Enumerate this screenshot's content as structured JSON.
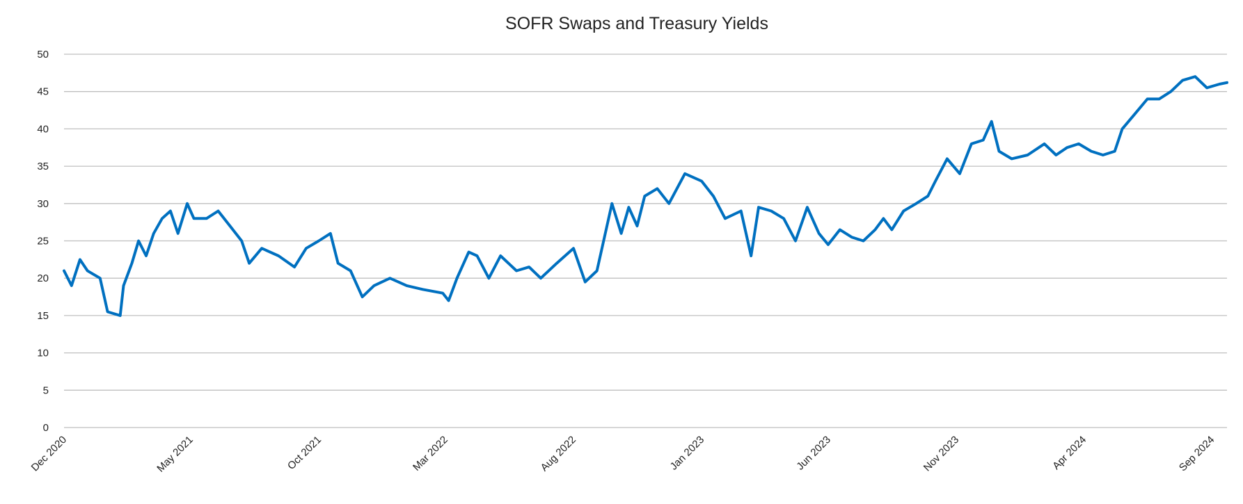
{
  "chart_data": {
    "type": "line",
    "title": "SOFR Swaps and Treasury Yields",
    "xlabel": "",
    "ylabel": "",
    "ylim": [
      0,
      50
    ],
    "yticks": [
      0,
      5,
      10,
      15,
      20,
      25,
      30,
      35,
      40,
      45,
      50
    ],
    "xlim": [
      "2020-12-01",
      "2024-09-19"
    ],
    "xticks": [
      {
        "date": "2020-12-01",
        "label": "Dec 2020"
      },
      {
        "date": "2021-05-01",
        "label": "May 2021"
      },
      {
        "date": "2021-10-01",
        "label": "Oct 2021"
      },
      {
        "date": "2022-03-01",
        "label": "Mar 2022"
      },
      {
        "date": "2022-08-01",
        "label": "Aug 2022"
      },
      {
        "date": "2023-01-01",
        "label": "Jan 2023"
      },
      {
        "date": "2023-06-01",
        "label": "Jun 2023"
      },
      {
        "date": "2023-11-01",
        "label": "Nov 2023"
      },
      {
        "date": "2024-04-01",
        "label": "Apr 2024"
      },
      {
        "date": "2024-09-01",
        "label": "Sep 2024"
      }
    ],
    "grid": true,
    "legend": "none",
    "line_color": "#0070C0",
    "grid_color": "#BFBFBF",
    "series": [
      {
        "x": [
          "2020-12-01",
          "2020-12-10",
          "2020-12-20",
          "2020-12-29",
          "2021-01-13",
          "2021-01-22",
          "2021-02-06",
          "2021-02-10",
          "2021-02-20",
          "2021-02-28",
          "2021-03-09",
          "2021-03-18",
          "2021-03-28",
          "2021-04-07",
          "2021-04-16",
          "2021-04-27",
          "2021-05-05",
          "2021-05-20",
          "2021-06-03",
          "2021-06-17",
          "2021-07-01",
          "2021-07-10",
          "2021-07-25",
          "2021-08-14",
          "2021-09-02",
          "2021-09-16",
          "2021-10-01",
          "2021-10-15",
          "2021-10-24",
          "2021-11-08",
          "2021-11-22",
          "2021-12-06",
          "2021-12-25",
          "2022-01-14",
          "2022-02-02",
          "2022-02-26",
          "2022-03-05",
          "2022-03-15",
          "2022-03-29",
          "2022-04-08",
          "2022-04-22",
          "2022-05-06",
          "2022-05-25",
          "2022-06-09",
          "2022-06-23",
          "2022-07-12",
          "2022-08-01",
          "2022-08-15",
          "2022-08-29",
          "2022-09-16",
          "2022-09-27",
          "2022-10-06",
          "2022-10-16",
          "2022-10-25",
          "2022-11-09",
          "2022-11-23",
          "2022-12-12",
          "2023-01-01",
          "2023-01-15",
          "2023-01-29",
          "2023-02-17",
          "2023-03-01",
          "2023-03-10",
          "2023-03-25",
          "2023-04-09",
          "2023-04-23",
          "2023-05-07",
          "2023-05-21",
          "2023-06-01",
          "2023-06-15",
          "2023-06-29",
          "2023-07-13",
          "2023-07-27",
          "2023-08-06",
          "2023-08-16",
          "2023-08-30",
          "2023-09-14",
          "2023-09-28",
          "2023-10-07",
          "2023-10-21",
          "2023-11-05",
          "2023-11-19",
          "2023-12-03",
          "2023-12-13",
          "2023-12-22",
          "2024-01-06",
          "2024-01-25",
          "2024-02-14",
          "2024-02-28",
          "2024-03-12",
          "2024-03-26",
          "2024-04-10",
          "2024-04-24",
          "2024-05-08",
          "2024-05-17",
          "2024-06-01",
          "2024-06-16",
          "2024-06-30",
          "2024-07-14",
          "2024-07-28",
          "2024-08-12",
          "2024-08-26",
          "2024-09-10",
          "2024-09-19"
        ],
        "y": [
          21,
          19,
          22.5,
          21,
          20,
          15.5,
          15,
          19,
          22,
          25,
          23,
          26,
          28,
          29,
          26,
          30,
          28,
          28,
          29,
          27,
          25,
          22,
          24,
          23,
          21.5,
          24,
          25,
          26,
          22,
          21,
          17.5,
          19,
          20,
          19,
          18.5,
          18,
          17,
          20,
          23.5,
          23,
          20,
          23,
          21,
          21.5,
          20,
          22,
          24,
          19.5,
          21,
          30,
          26,
          29.5,
          27,
          31,
          32,
          30,
          34,
          33,
          31,
          28,
          29,
          23,
          29.5,
          29,
          28,
          25,
          29.5,
          26,
          24.5,
          26.5,
          25.5,
          25,
          26.5,
          28,
          26.5,
          29,
          30,
          31,
          33,
          36,
          34,
          38,
          38.5,
          41,
          37,
          36,
          36.5,
          38,
          36.5,
          37.5,
          38,
          37,
          36.5,
          37,
          40,
          42,
          44,
          44,
          45,
          46.5,
          47,
          45.5,
          46,
          46.2
        ]
      }
    ]
  }
}
